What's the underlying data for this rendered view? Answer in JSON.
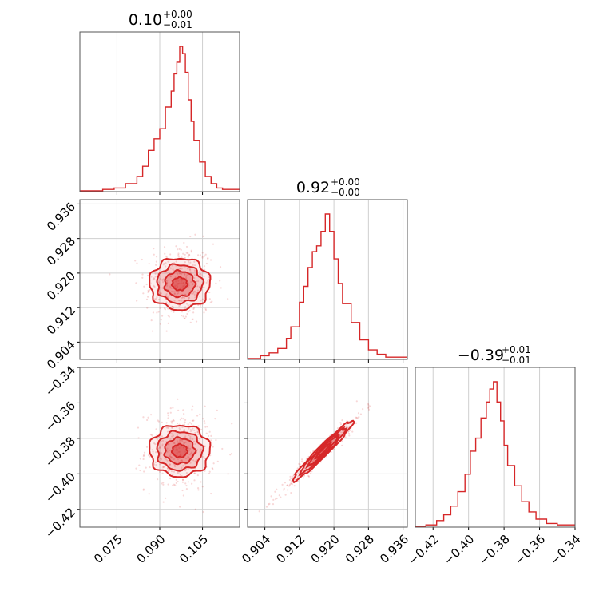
{
  "chart_data": {
    "type": "corner",
    "color": "#d62728",
    "parameters": [
      {
        "title_main": "0.10",
        "title_plus": "+0.00",
        "title_minus": "−0.01",
        "range": [
          0.062,
          0.118
        ],
        "ticks": [
          0.075,
          0.09,
          0.105
        ],
        "tick_labels": [
          "0.075",
          "0.090",
          "0.105"
        ],
        "posterior_mean": 0.097,
        "posterior_sd": 0.0045
      },
      {
        "title_main": "0.92",
        "title_plus": "+0.00",
        "title_minus": "−0.00",
        "range": [
          0.9,
          0.937
        ],
        "ticks": [
          0.904,
          0.912,
          0.92,
          0.928,
          0.936
        ],
        "tick_labels": [
          "0.904",
          "0.912",
          "0.920",
          "0.928",
          "0.936"
        ],
        "posterior_mean": 0.9175,
        "posterior_sd": 0.0035
      },
      {
        "title_main": "−0.39",
        "title_plus": "+0.01",
        "title_minus": "−0.01",
        "range": [
          -0.43,
          -0.34
        ],
        "ticks": [
          -0.42,
          -0.4,
          -0.38,
          -0.36,
          -0.34
        ],
        "tick_labels": [
          "−0.42",
          "−0.40",
          "−0.38",
          "−0.36",
          "−0.34"
        ],
        "posterior_mean": -0.387,
        "posterior_sd": 0.0085
      }
    ],
    "correlations": {
      "p0_p1": 0.0,
      "p0_p2": 0.0,
      "p1_p2": 0.97
    },
    "histograms": [
      {
        "x": [
          0.062,
          0.07,
          0.074,
          0.078,
          0.082,
          0.084,
          0.086,
          0.088,
          0.09,
          0.092,
          0.094,
          0.095,
          0.096,
          0.097,
          0.098,
          0.099,
          0.1,
          0.101,
          0.102,
          0.104,
          0.106,
          0.108,
          0.11,
          0.112,
          0.118
        ],
        "y": [
          0.0,
          0.01,
          0.02,
          0.05,
          0.1,
          0.17,
          0.28,
          0.36,
          0.43,
          0.58,
          0.69,
          0.81,
          0.89,
          1.0,
          0.95,
          0.82,
          0.63,
          0.48,
          0.35,
          0.2,
          0.1,
          0.05,
          0.02,
          0.01,
          0.0
        ]
      },
      {
        "x": [
          0.9,
          0.903,
          0.905,
          0.907,
          0.909,
          0.91,
          0.912,
          0.913,
          0.914,
          0.915,
          0.916,
          0.917,
          0.918,
          0.919,
          0.92,
          0.921,
          0.922,
          0.924,
          0.926,
          0.928,
          0.93,
          0.932,
          0.937
        ],
        "y": [
          0.0,
          0.02,
          0.04,
          0.07,
          0.14,
          0.22,
          0.39,
          0.5,
          0.63,
          0.74,
          0.78,
          0.88,
          1.0,
          0.88,
          0.69,
          0.52,
          0.38,
          0.25,
          0.13,
          0.06,
          0.03,
          0.01,
          0.0
        ]
      },
      {
        "x": [
          -0.43,
          -0.424,
          -0.418,
          -0.414,
          -0.41,
          -0.406,
          -0.402,
          -0.399,
          -0.396,
          -0.393,
          -0.39,
          -0.388,
          -0.386,
          -0.384,
          -0.382,
          -0.38,
          -0.378,
          -0.374,
          -0.37,
          -0.366,
          -0.362,
          -0.356,
          -0.35,
          -0.34
        ],
        "y": [
          0.0,
          0.01,
          0.04,
          0.08,
          0.14,
          0.24,
          0.36,
          0.52,
          0.61,
          0.75,
          0.86,
          0.95,
          1.0,
          0.86,
          0.73,
          0.56,
          0.42,
          0.28,
          0.17,
          0.1,
          0.05,
          0.02,
          0.01,
          0.0
        ]
      }
    ],
    "contour_levels_sigma": [
      0.5,
      1.0,
      1.5,
      2.0
    ],
    "contour_fill_opacity": [
      0.45,
      0.3,
      0.18,
      0.08
    ],
    "grid": true
  }
}
